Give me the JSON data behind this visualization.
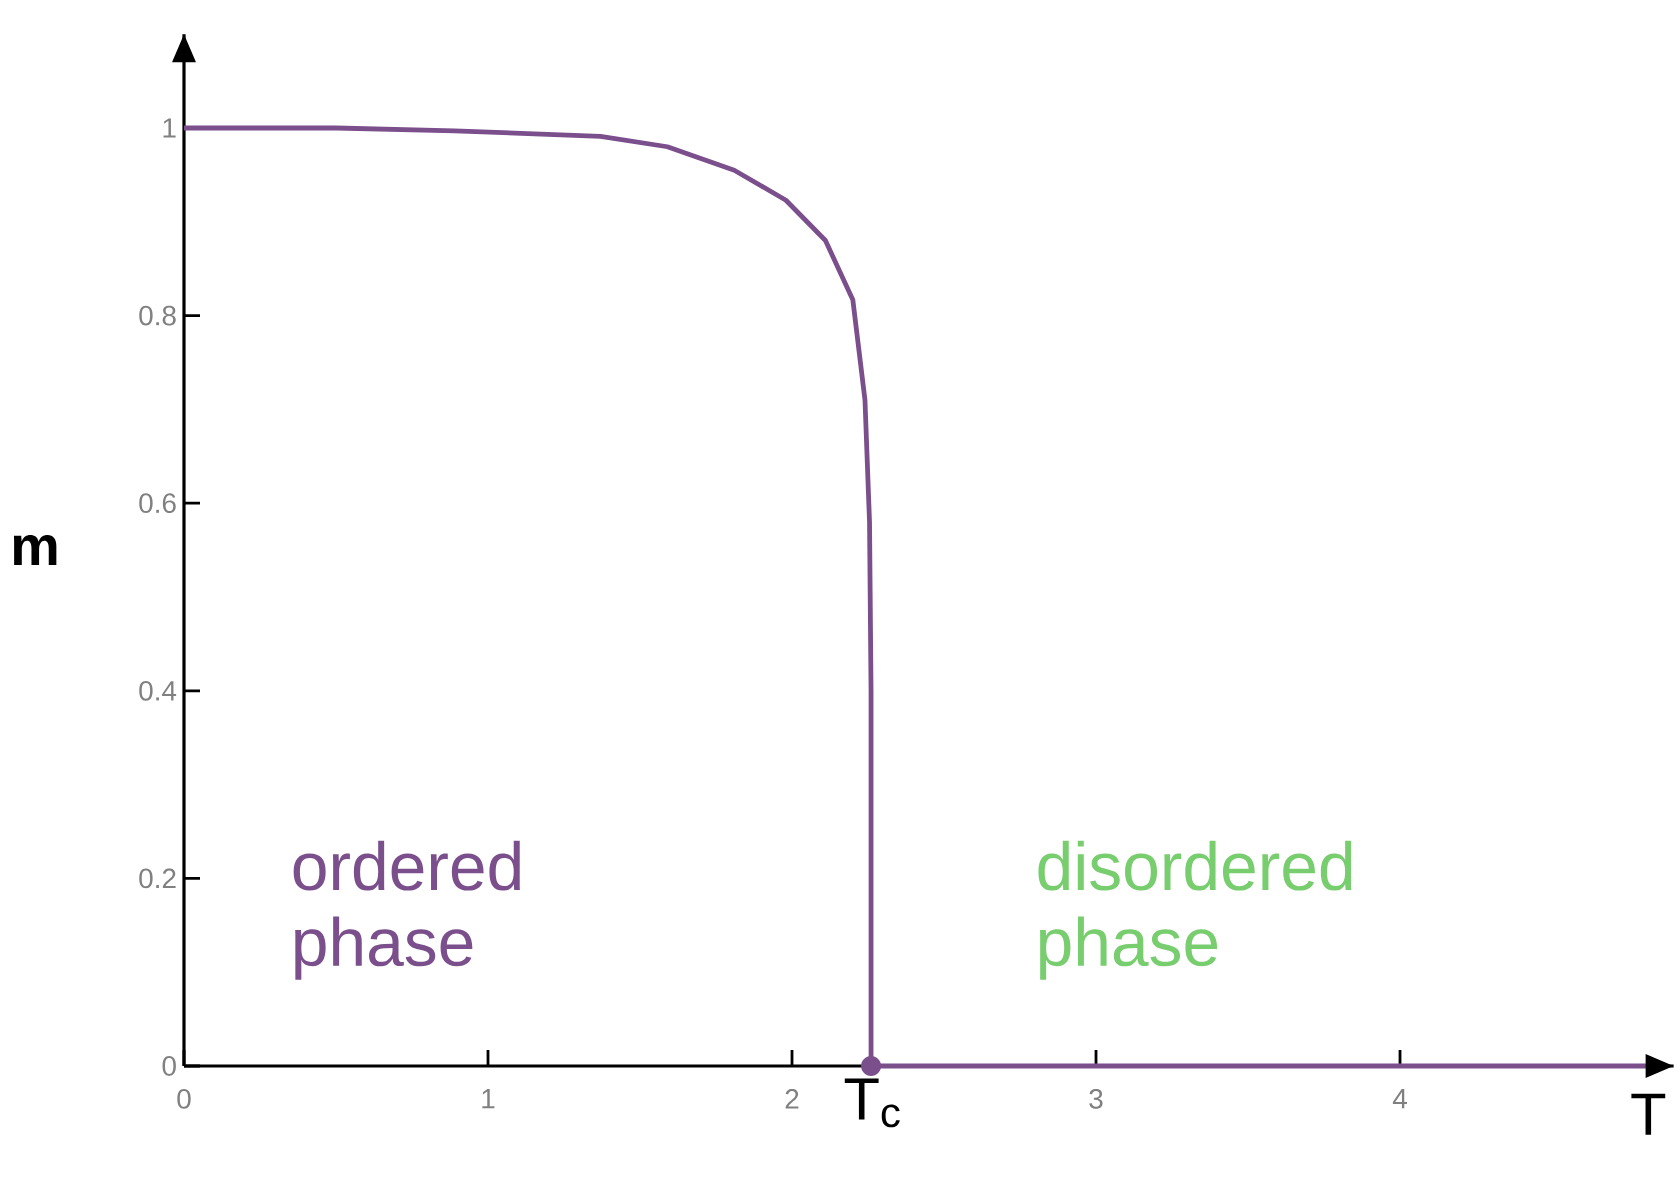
{
  "chart_data": {
    "type": "line",
    "xlabel": "T",
    "ylabel": "m",
    "x": [
      0,
      0.5,
      0.89,
      1.37,
      1.59,
      1.81,
      1.98,
      2.11,
      2.2,
      2.24,
      2.255,
      2.26,
      2.26,
      4.85
    ],
    "series": [
      {
        "color": "#7b4f8c",
        "values": [
          1,
          1,
          0.997,
          0.991,
          0.98,
          0.955,
          0.923,
          0.88,
          0.817,
          0.71,
          0.58,
          0.4,
          0,
          0
        ]
      }
    ],
    "xlim": [
      0,
      4.9
    ],
    "ylim": [
      0,
      1.1
    ],
    "xticks": [
      0,
      1,
      2,
      3,
      4
    ],
    "yticks": [
      0,
      0.2,
      0.4,
      0.6,
      0.8,
      1
    ],
    "annotations": [
      "ordered phase",
      "disordered phase",
      {
        "text": "T$_{c}$",
        "x": 2.26,
        "y": 0
      }
    ]
  }
}
